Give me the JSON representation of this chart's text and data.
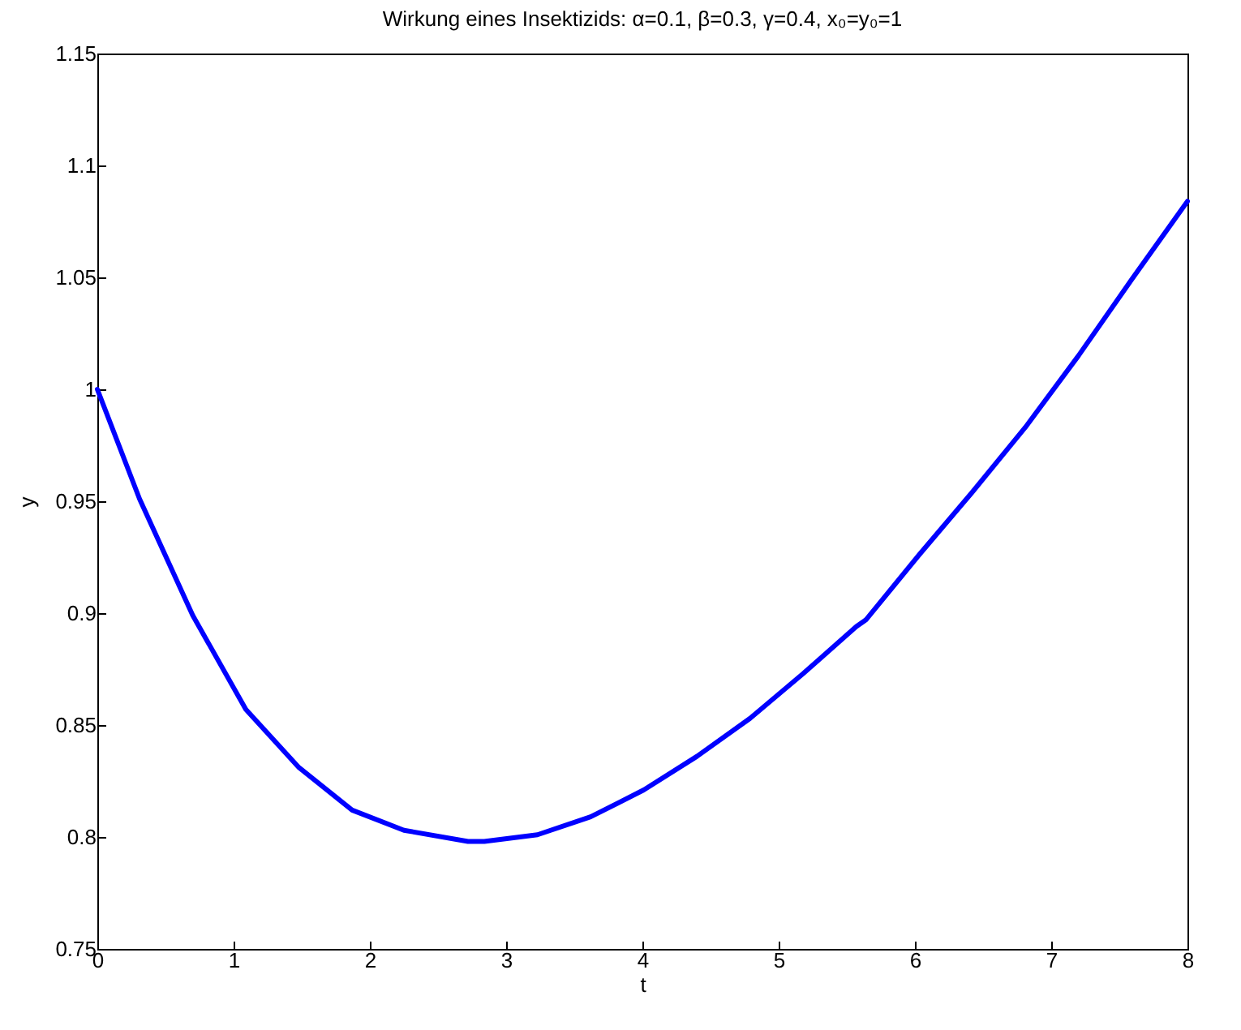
{
  "chart_data": {
    "type": "line",
    "title": "Wirkung eines Insektizids:    α=0.1, β=0.3, γ=0.4, x₀=y₀=1",
    "xlabel": "t",
    "ylabel": "y",
    "x": [
      0,
      0.31,
      0.7,
      1.09,
      1.48,
      1.87,
      2.25,
      2.72,
      2.84,
      3.23,
      3.62,
      4.01,
      4.4,
      4.79,
      5.18,
      5.57,
      5.64,
      6.03,
      6.42,
      6.81,
      7.2,
      7.59,
      8
    ],
    "series": [
      {
        "color": "#0000ff",
        "values": [
          1.0,
          0.951,
          0.899,
          0.857,
          0.831,
          0.812,
          0.803,
          0.798,
          0.798,
          0.801,
          0.809,
          0.821,
          0.836,
          0.853,
          0.873,
          0.894,
          0.897,
          0.926,
          0.954,
          0.983,
          1.015,
          1.049,
          1.084
        ]
      }
    ],
    "xlim": [
      0,
      8
    ],
    "xticks": [
      0,
      1,
      2,
      3,
      4,
      5,
      6,
      7,
      8
    ],
    "ylim": [
      0.75,
      1.15
    ],
    "yticks": [
      0.75,
      0.8,
      0.85,
      0.9,
      0.95,
      1,
      1.05,
      1.1,
      1.15
    ],
    "grid": false,
    "legend": false,
    "marker": "none",
    "line_style": "solid"
  }
}
